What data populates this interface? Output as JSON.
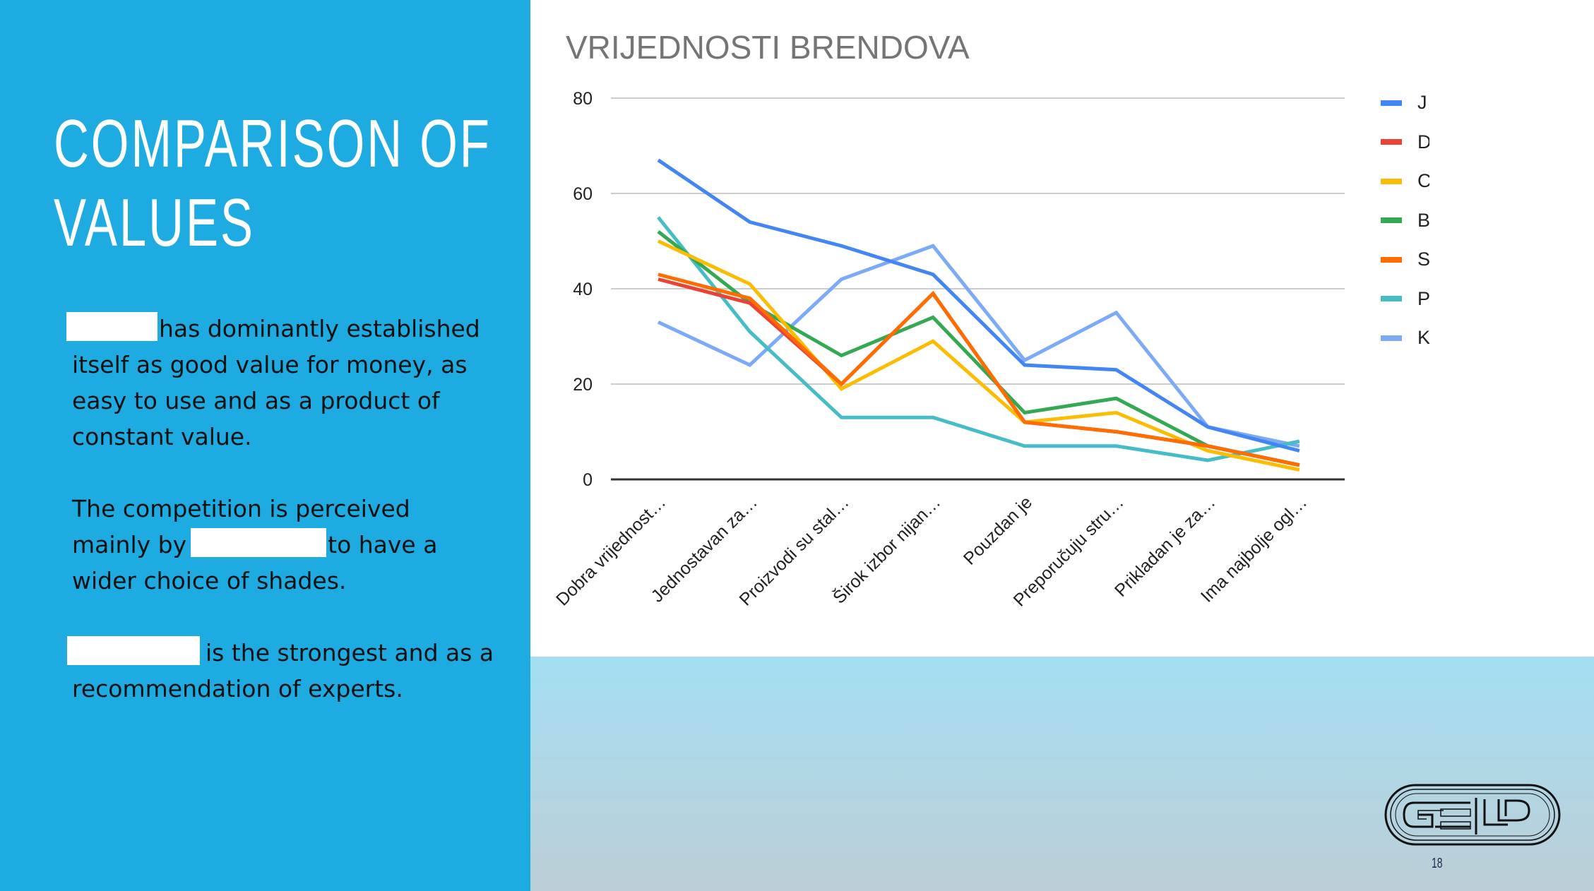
{
  "slide": {
    "title_line1": "COMPARISON OF",
    "title_line2": "VALUES",
    "paragraphs": [
      {
        "before": "",
        "after": "has dominantly established itself as good value for money, as easy to use and as a product of constant value."
      },
      {
        "before": "The competition is perceived mainly by",
        "after": "to have a wider choice of shades."
      },
      {
        "before": "",
        "after": "is the strongest and as a recommendation of experts."
      }
    ],
    "page_number": "18",
    "logo_text": "GELD"
  },
  "colors": {
    "left_panel": "#1eabe2",
    "bottom_band_top": "#a4def2",
    "bottom_band_bottom": "#bcced6"
  },
  "chart_data": {
    "type": "line",
    "title": "VRIJEDNOSTI BRENDOVA",
    "xlabel": "",
    "ylabel": "",
    "ylim": [
      0,
      80
    ],
    "yticks": [
      0,
      20,
      40,
      60,
      80
    ],
    "grid": true,
    "legend_position": "right",
    "categories": [
      "Dobra vrijednost…",
      "Jednostavan za…",
      "Proizvodi su stal…",
      "Širok izbor nijan…",
      "Pouzdan je",
      "Preporučuju stru…",
      "Prikladan je za…",
      "Ima najbolje ogl…"
    ],
    "series": [
      {
        "name": "J",
        "color": "#4285f4",
        "values": [
          67,
          54,
          49,
          43,
          24,
          23,
          11,
          6
        ]
      },
      {
        "name": "D",
        "color": "#ea4335",
        "values": [
          42,
          37,
          20,
          39,
          12,
          10,
          7,
          3
        ]
      },
      {
        "name": "C",
        "color": "#fbbc04",
        "values": [
          50,
          41,
          19,
          29,
          12,
          14,
          6,
          2
        ]
      },
      {
        "name": "B",
        "color": "#34a853",
        "values": [
          52,
          37,
          26,
          34,
          14,
          17,
          7,
          3
        ]
      },
      {
        "name": "S",
        "color": "#ff6d01",
        "values": [
          43,
          38,
          20,
          39,
          12,
          10,
          7,
          3
        ]
      },
      {
        "name": "P",
        "color": "#46bdc6",
        "values": [
          55,
          31,
          13,
          13,
          7,
          7,
          4,
          8
        ]
      },
      {
        "name": "K",
        "color": "#7baaf7",
        "values": [
          33,
          24,
          42,
          49,
          25,
          35,
          11,
          7
        ]
      }
    ]
  }
}
